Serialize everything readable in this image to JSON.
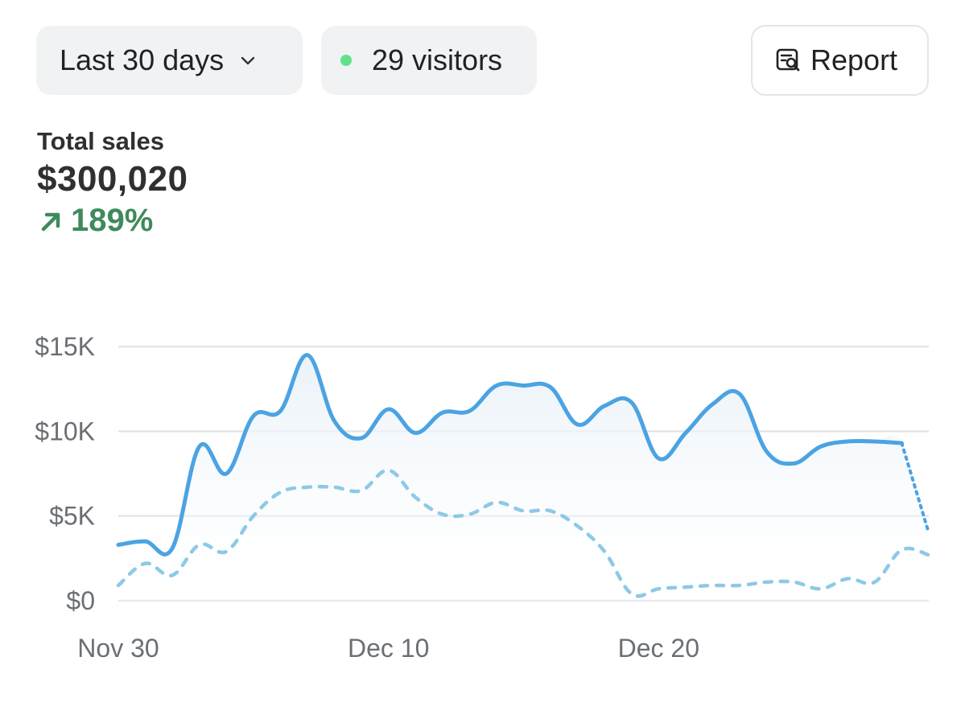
{
  "toolbar": {
    "range_label": "Last 30 days",
    "visitors_label": "29 visitors",
    "report_label": "Report",
    "visitors_dot_color": "#5ee38b"
  },
  "metrics": {
    "total_sales_label": "Total sales",
    "total_sales_value": "$300,020",
    "total_sales_change": "189%",
    "change_color": "#3f8a5c"
  },
  "chart_data": {
    "type": "line",
    "title": "",
    "xlabel": "",
    "ylabel": "",
    "ylim": [
      0,
      15000
    ],
    "yticks": [
      "$0",
      "$5K",
      "$10K",
      "$15K"
    ],
    "ytick_values": [
      0,
      5000,
      10000,
      15000
    ],
    "xticks": [
      "Nov 30",
      "Dec 10",
      "Dec 20"
    ],
    "xtick_values": [
      "Nov 30",
      "Dec 10",
      "Dec 20"
    ],
    "grid": true,
    "series": [
      {
        "style": "solid-line-with-area",
        "color": "#4ba3e3",
        "points": [
          [
            "Nov 30",
            3300
          ],
          [
            "Dec 1",
            3500
          ],
          [
            "Dec 2",
            3100
          ],
          [
            "Dec 3",
            9100
          ],
          [
            "Dec 4",
            7500
          ],
          [
            "Dec 5",
            10900
          ],
          [
            "Dec 6",
            11200
          ],
          [
            "Dec 7",
            14500
          ],
          [
            "Dec 8",
            10600
          ],
          [
            "Dec 9",
            9600
          ],
          [
            "Dec 10",
            11300
          ],
          [
            "Dec 11",
            9900
          ],
          [
            "Dec 12",
            11100
          ],
          [
            "Dec 13",
            11200
          ],
          [
            "Dec 14",
            12700
          ],
          [
            "Dec 15",
            12700
          ],
          [
            "Dec 16",
            12600
          ],
          [
            "Dec 17",
            10400
          ],
          [
            "Dec 18",
            11500
          ],
          [
            "Dec 19",
            11700
          ],
          [
            "Dec 20",
            8400
          ],
          [
            "Dec 21",
            9900
          ],
          [
            "Dec 22",
            11600
          ],
          [
            "Dec 23",
            12200
          ],
          [
            "Dec 24",
            8800
          ],
          [
            "Dec 25",
            8100
          ],
          [
            "Dec 26",
            9100
          ],
          [
            "Dec 27",
            9400
          ],
          [
            "Dec 28",
            9400
          ],
          [
            "Dec 29",
            9300
          ],
          [
            "Dec 30",
            4000
          ]
        ],
        "partial_from": "Dec 29"
      },
      {
        "style": "dashed-line",
        "color": "#8ec9e6",
        "points": [
          [
            "Nov 30",
            900
          ],
          [
            "Dec 1",
            2200
          ],
          [
            "Dec 2",
            1500
          ],
          [
            "Dec 3",
            3300
          ],
          [
            "Dec 4",
            2900
          ],
          [
            "Dec 5",
            5000
          ],
          [
            "Dec 6",
            6400
          ],
          [
            "Dec 7",
            6700
          ],
          [
            "Dec 8",
            6700
          ],
          [
            "Dec 9",
            6500
          ],
          [
            "Dec 10",
            7700
          ],
          [
            "Dec 11",
            6100
          ],
          [
            "Dec 12",
            5100
          ],
          [
            "Dec 13",
            5100
          ],
          [
            "Dec 14",
            5800
          ],
          [
            "Dec 15",
            5300
          ],
          [
            "Dec 16",
            5300
          ],
          [
            "Dec 17",
            4400
          ],
          [
            "Dec 18",
            2900
          ],
          [
            "Dec 19",
            400
          ],
          [
            "Dec 20",
            700
          ],
          [
            "Dec 21",
            800
          ],
          [
            "Dec 22",
            900
          ],
          [
            "Dec 23",
            900
          ],
          [
            "Dec 24",
            1100
          ],
          [
            "Dec 25",
            1100
          ],
          [
            "Dec 26",
            700
          ],
          [
            "Dec 27",
            1300
          ],
          [
            "Dec 28",
            1100
          ],
          [
            "Dec 29",
            3000
          ],
          [
            "Dec 30",
            2700
          ]
        ]
      }
    ]
  }
}
